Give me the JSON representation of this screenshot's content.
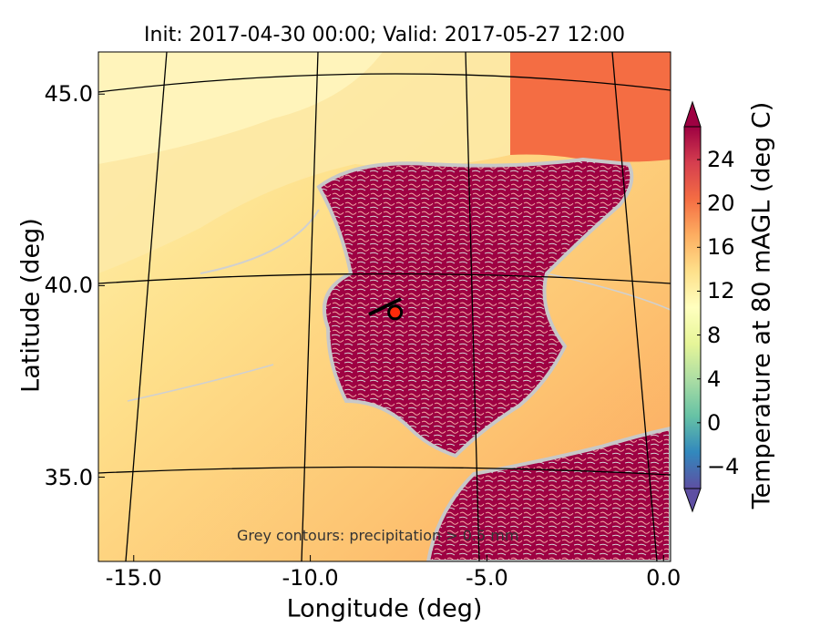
{
  "title": "Init: 2017-04-30 00:00; Valid: 2017-05-27 12:00",
  "map": {
    "xlabel": "Longitude (deg)",
    "ylabel": "Latitude (deg)",
    "xlim": [
      -16,
      0.2
    ],
    "ylim": [
      32.8,
      46.1
    ],
    "x_ticks": [
      "-15.0",
      "-10.0",
      "-5.0",
      "0.0"
    ],
    "x_tick_values": [
      -15,
      -10,
      -5,
      0
    ],
    "y_ticks": [
      "45.0",
      "40.0",
      "35.0"
    ],
    "y_tick_values": [
      45,
      40,
      35
    ],
    "annotation": "Grey contours: precipitation > 0.5 mm",
    "marker": {
      "lon": -7.6,
      "lat": 39.3,
      "color": "#ff2a0a"
    },
    "grid_lines": true
  },
  "colorbar": {
    "label": "Temperature at 80 mAGL (deg C)",
    "ticks": [
      "24",
      "20",
      "16",
      "12",
      "8",
      "4",
      "0",
      "−4"
    ],
    "tick_values": [
      24,
      20,
      16,
      12,
      8,
      4,
      0,
      -4
    ],
    "range": [
      -6,
      27
    ],
    "extend": "both",
    "colormap": "Spectral_r"
  },
  "colors": {
    "ocean_far": "#fde9a6",
    "ocean_warm": "#fdb366",
    "land_hot": "#9e0142",
    "precip_contour": "#c8c8c8"
  }
}
